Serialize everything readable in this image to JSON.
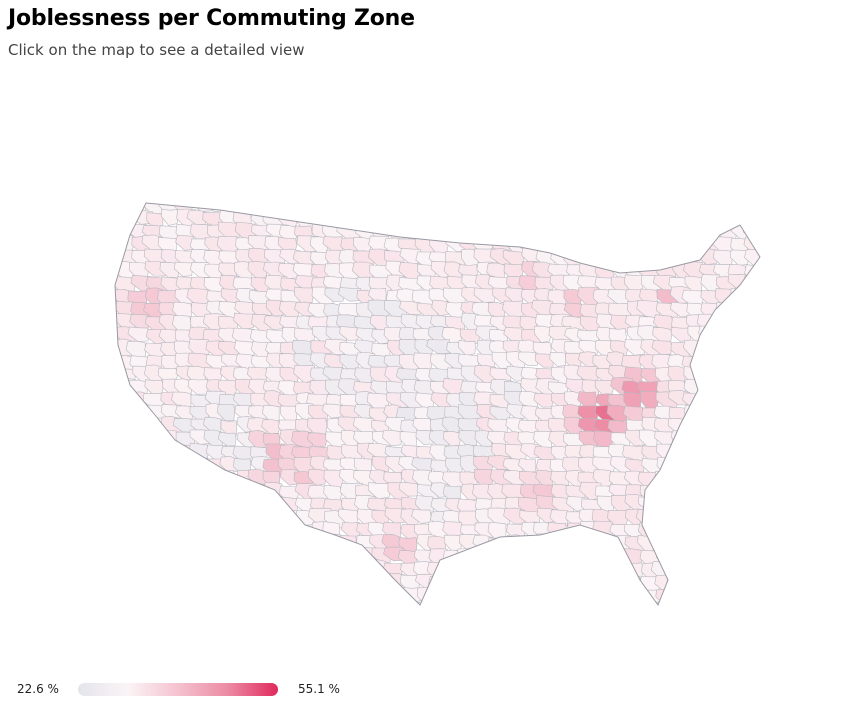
{
  "header": {
    "title": "Joblessness per Commuting Zone",
    "subtitle": "Click on the map to see a detailed view"
  },
  "legend": {
    "min_label": "22.6 %",
    "max_label": "55.1 %",
    "min_value": 22.6,
    "max_value": 55.1,
    "colors": [
      "#e4e4ec",
      "#fbf4f6",
      "#f4c2cf",
      "#ec8aa3",
      "#df2a5c"
    ]
  },
  "map": {
    "region": "United States (contiguous)",
    "unit": "Commuting Zone",
    "stroke_color": "#b8b8c0"
  }
}
